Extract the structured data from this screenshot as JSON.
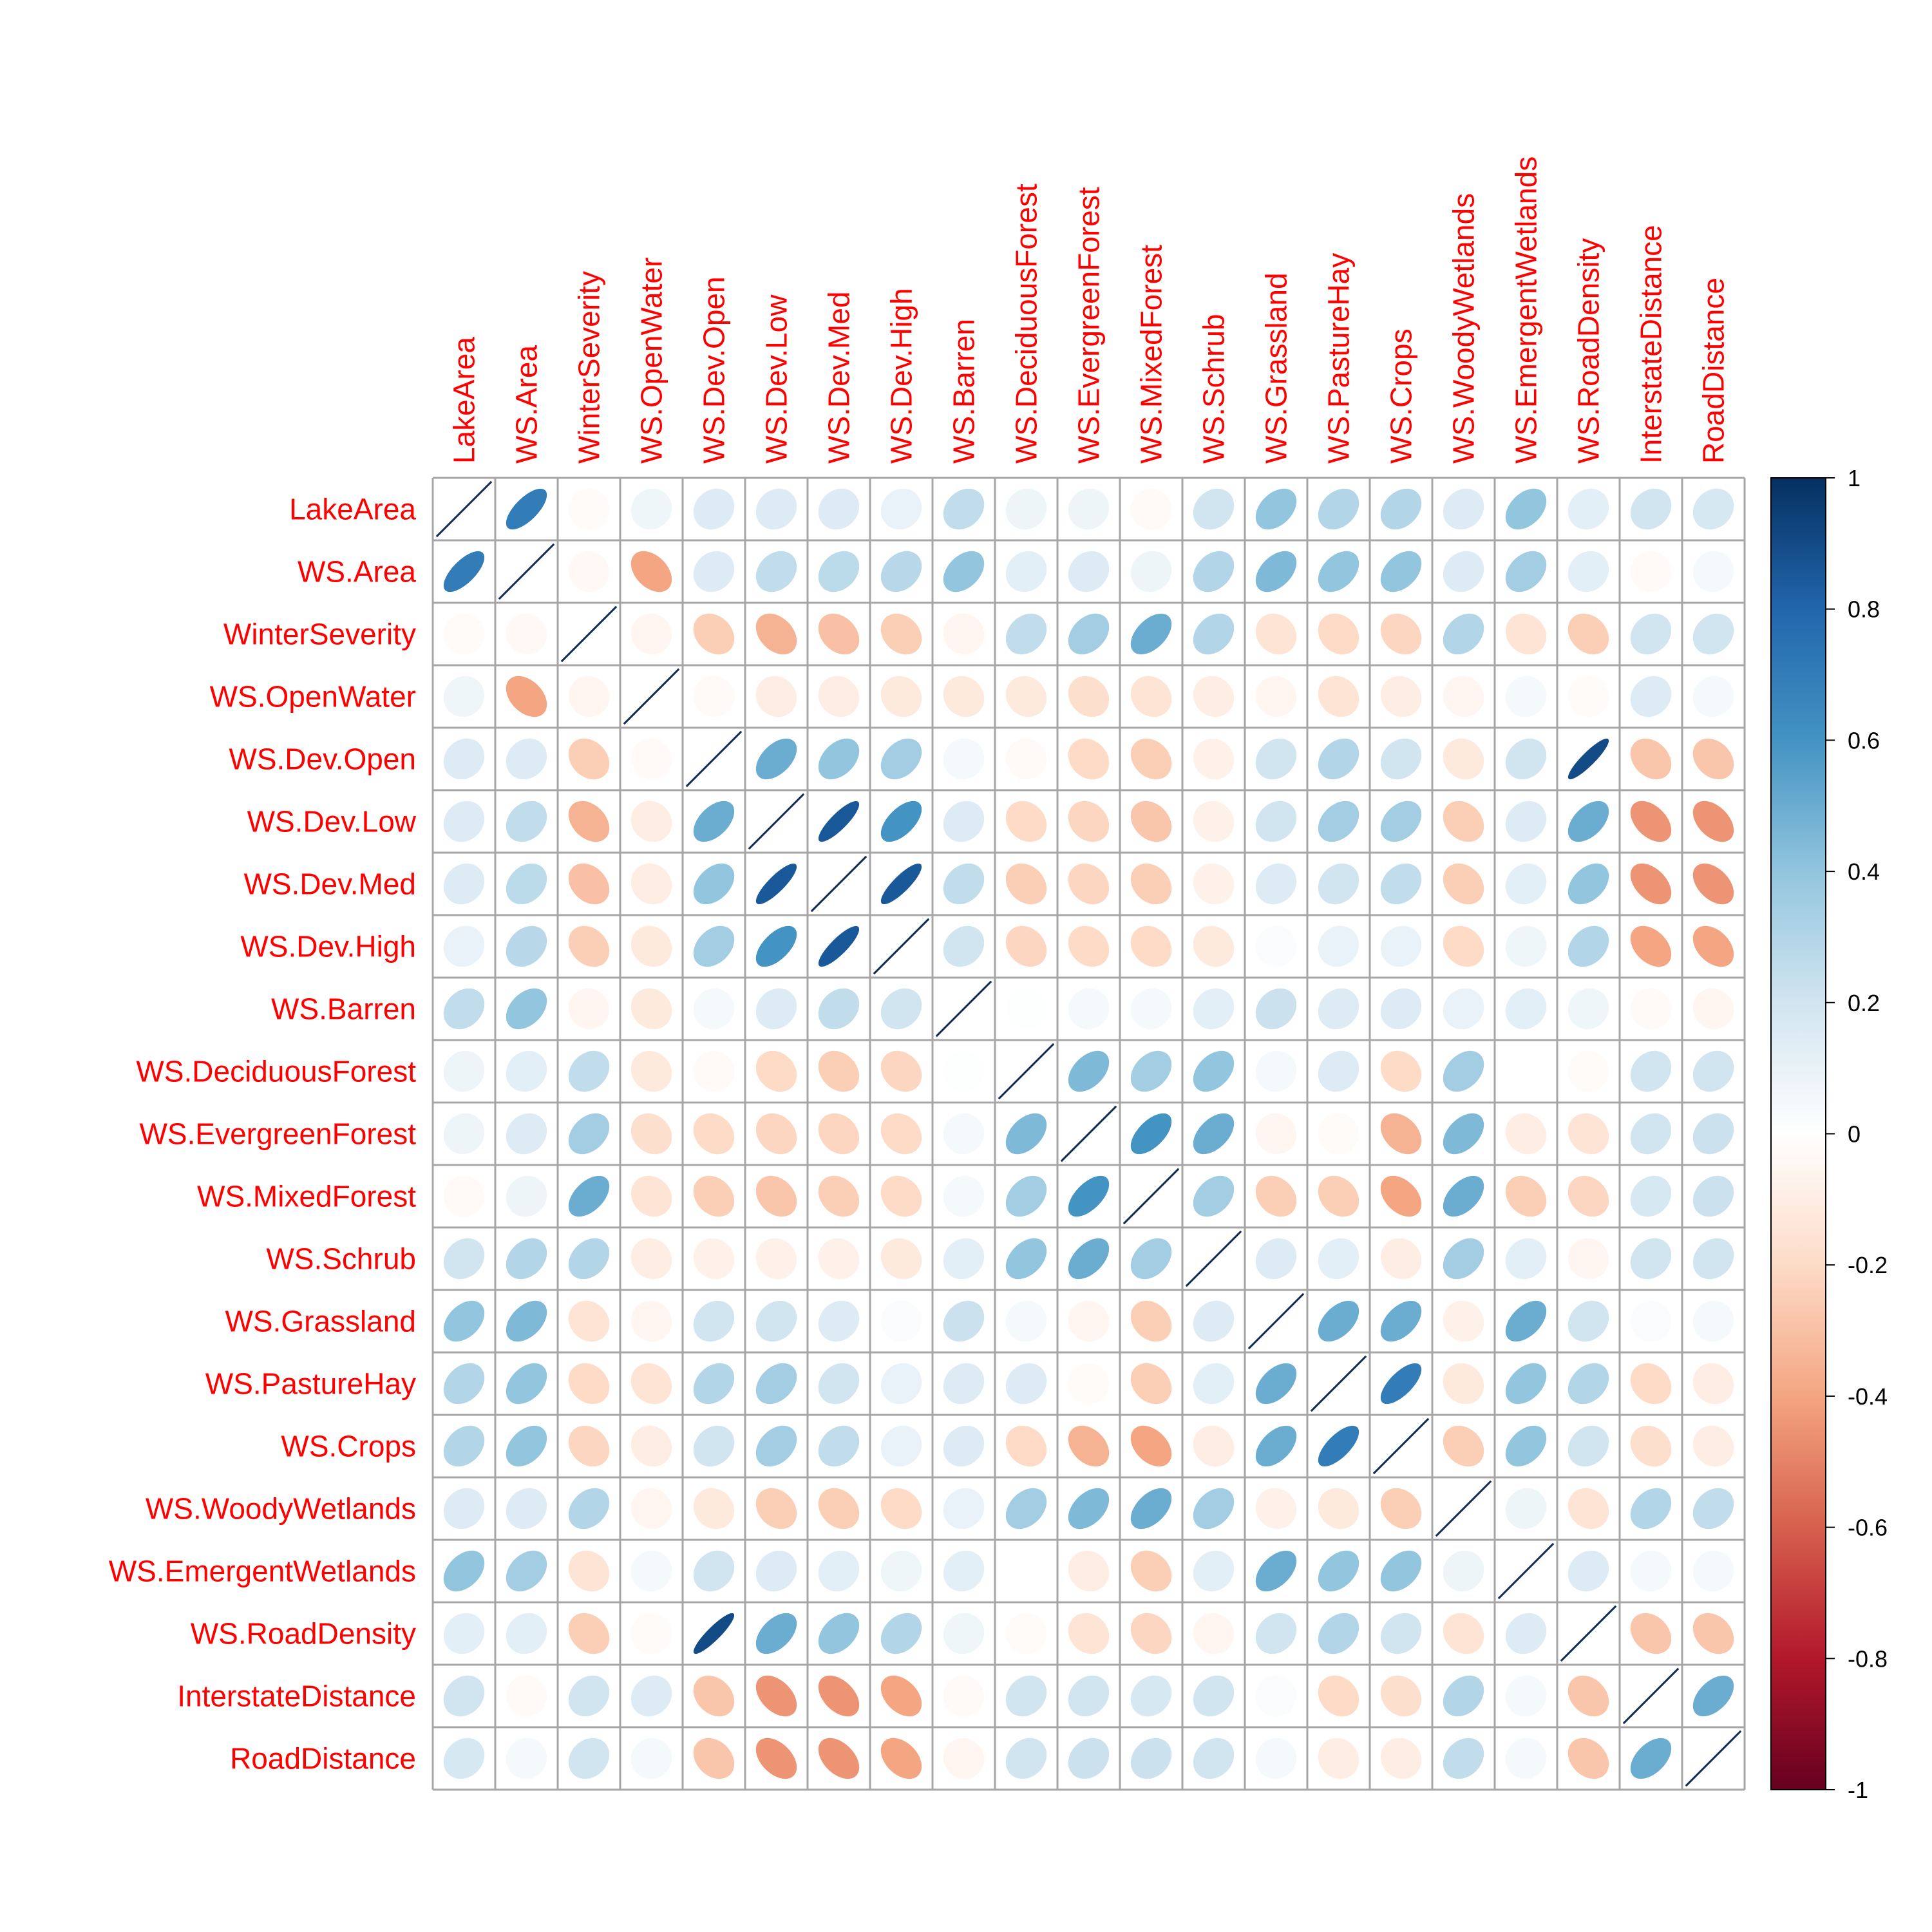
{
  "chart_data": {
    "type": "heatmap",
    "method": "ellipse",
    "variables": [
      "LakeArea",
      "WS.Area",
      "WinterSeverity",
      "WS.OpenWater",
      "WS.Dev.Open",
      "WS.Dev.Low",
      "WS.Dev.Med",
      "WS.Dev.High",
      "WS.Barren",
      "WS.DeciduousForest",
      "WS.EvergreenForest",
      "WS.MixedForest",
      "WS.Schrub",
      "WS.Grassland",
      "WS.PastureHay",
      "WS.Crops",
      "WS.WoodyWetlands",
      "WS.EmergentWetlands",
      "WS.RoadDensity",
      "InterstateDistance",
      "RoadDistance"
    ],
    "matrix": [
      [
        1.0,
        0.7,
        -0.02,
        0.07,
        0.15,
        0.15,
        0.15,
        0.1,
        0.25,
        0.08,
        0.08,
        -0.03,
        0.2,
        0.4,
        0.3,
        0.3,
        0.15,
        0.4,
        0.12,
        0.2,
        0.18
      ],
      [
        0.7,
        1.0,
        -0.04,
        -0.4,
        0.15,
        0.25,
        0.27,
        0.28,
        0.4,
        0.12,
        0.15,
        0.08,
        0.3,
        0.45,
        0.4,
        0.4,
        0.15,
        0.35,
        0.12,
        -0.03,
        0.05
      ],
      [
        -0.02,
        -0.04,
        1.0,
        -0.05,
        -0.25,
        -0.35,
        -0.3,
        -0.25,
        -0.05,
        0.25,
        0.35,
        0.5,
        0.3,
        -0.15,
        -0.2,
        -0.22,
        0.3,
        -0.15,
        -0.25,
        0.2,
        0.2
      ],
      [
        0.07,
        -0.4,
        -0.05,
        1.0,
        -0.03,
        -0.1,
        -0.1,
        -0.12,
        -0.12,
        -0.12,
        -0.18,
        -0.15,
        -0.1,
        -0.05,
        -0.15,
        -0.1,
        -0.05,
        0.05,
        -0.02,
        0.15,
        0.05
      ],
      [
        0.15,
        0.15,
        -0.25,
        -0.03,
        1.0,
        0.5,
        0.4,
        0.35,
        0.05,
        -0.03,
        -0.2,
        -0.25,
        -0.08,
        0.2,
        0.3,
        0.2,
        -0.12,
        0.2,
        0.9,
        -0.28,
        -0.28
      ],
      [
        0.15,
        0.25,
        -0.35,
        -0.1,
        0.5,
        1.0,
        0.85,
        0.6,
        0.15,
        -0.2,
        -0.22,
        -0.28,
        -0.08,
        0.2,
        0.35,
        0.35,
        -0.25,
        0.15,
        0.5,
        -0.45,
        -0.45
      ],
      [
        0.15,
        0.27,
        -0.3,
        -0.1,
        0.4,
        0.85,
        1.0,
        0.85,
        0.25,
        -0.25,
        -0.22,
        -0.25,
        -0.08,
        0.15,
        0.2,
        0.25,
        -0.25,
        0.12,
        0.4,
        -0.45,
        -0.45
      ],
      [
        0.1,
        0.28,
        -0.25,
        -0.12,
        0.35,
        0.6,
        0.85,
        1.0,
        0.2,
        -0.22,
        -0.2,
        -0.2,
        -0.12,
        0.02,
        0.1,
        0.1,
        -0.2,
        0.07,
        0.3,
        -0.4,
        -0.4
      ],
      [
        0.25,
        0.4,
        -0.05,
        -0.12,
        0.05,
        0.15,
        0.25,
        0.2,
        1.0,
        0.01,
        0.05,
        0.05,
        0.12,
        0.22,
        0.15,
        0.15,
        0.1,
        0.12,
        0.07,
        -0.03,
        -0.05
      ],
      [
        0.08,
        0.12,
        0.25,
        -0.12,
        -0.03,
        -0.2,
        -0.25,
        -0.22,
        0.01,
        1.0,
        0.45,
        0.35,
        0.4,
        0.05,
        0.15,
        -0.2,
        0.35,
        0.0,
        -0.02,
        0.2,
        0.2
      ],
      [
        0.08,
        0.15,
        0.35,
        -0.18,
        -0.2,
        -0.22,
        -0.22,
        -0.2,
        0.05,
        0.45,
        1.0,
        0.6,
        0.5,
        -0.05,
        -0.02,
        -0.35,
        0.45,
        -0.1,
        -0.15,
        0.2,
        0.22
      ],
      [
        -0.03,
        0.08,
        0.5,
        -0.15,
        -0.25,
        -0.28,
        -0.25,
        -0.2,
        0.05,
        0.35,
        0.6,
        1.0,
        0.35,
        -0.25,
        -0.25,
        -0.4,
        0.5,
        -0.25,
        -0.22,
        0.18,
        0.22
      ],
      [
        0.2,
        0.3,
        0.3,
        -0.1,
        -0.08,
        -0.08,
        -0.08,
        -0.12,
        0.12,
        0.4,
        0.5,
        0.35,
        1.0,
        0.15,
        0.12,
        -0.1,
        0.35,
        0.12,
        -0.05,
        0.2,
        0.2
      ],
      [
        0.4,
        0.45,
        -0.15,
        -0.05,
        0.2,
        0.2,
        0.15,
        0.02,
        0.22,
        0.05,
        -0.05,
        -0.25,
        0.15,
        1.0,
        0.5,
        0.5,
        -0.08,
        0.5,
        0.2,
        0.02,
        0.05
      ],
      [
        0.3,
        0.4,
        -0.2,
        -0.15,
        0.3,
        0.35,
        0.2,
        0.1,
        0.15,
        0.15,
        -0.02,
        -0.25,
        0.12,
        0.5,
        1.0,
        0.7,
        -0.12,
        0.4,
        0.3,
        -0.2,
        -0.1
      ],
      [
        0.3,
        0.4,
        -0.22,
        -0.1,
        0.2,
        0.35,
        0.25,
        0.1,
        0.15,
        -0.2,
        -0.35,
        -0.4,
        -0.1,
        0.5,
        0.7,
        1.0,
        -0.25,
        0.4,
        0.2,
        -0.18,
        -0.1
      ],
      [
        0.15,
        0.15,
        0.3,
        -0.05,
        -0.12,
        -0.25,
        -0.25,
        -0.2,
        0.1,
        0.35,
        0.45,
        0.5,
        0.35,
        -0.08,
        -0.12,
        -0.25,
        1.0,
        0.08,
        -0.15,
        0.3,
        0.25
      ],
      [
        0.4,
        0.35,
        -0.15,
        0.05,
        0.2,
        0.15,
        0.12,
        0.07,
        0.12,
        0.0,
        -0.1,
        -0.25,
        0.12,
        0.5,
        0.4,
        0.4,
        0.08,
        1.0,
        0.15,
        0.05,
        0.05
      ],
      [
        0.12,
        0.12,
        -0.25,
        -0.02,
        0.9,
        0.5,
        0.4,
        0.3,
        0.07,
        -0.02,
        -0.15,
        -0.22,
        -0.05,
        0.2,
        0.3,
        0.2,
        -0.15,
        0.15,
        1.0,
        -0.28,
        -0.28
      ],
      [
        0.2,
        -0.03,
        0.2,
        0.15,
        -0.28,
        -0.45,
        -0.45,
        -0.4,
        -0.03,
        0.2,
        0.2,
        0.18,
        0.2,
        0.02,
        -0.2,
        -0.18,
        0.3,
        0.05,
        -0.28,
        1.0,
        0.5
      ],
      [
        0.18,
        0.05,
        0.2,
        0.05,
        -0.28,
        -0.45,
        -0.45,
        -0.4,
        -0.05,
        0.2,
        0.22,
        0.22,
        0.2,
        0.05,
        -0.1,
        -0.1,
        0.25,
        0.05,
        -0.28,
        0.5,
        1.0
      ]
    ],
    "colorbar": {
      "range": [
        -1,
        1
      ],
      "ticks": [
        "1",
        "0.8",
        "0.6",
        "0.4",
        "0.2",
        "0",
        "-0.2",
        "-0.4",
        "-0.6",
        "-0.8",
        "-1"
      ],
      "colors": [
        "#67001F",
        "#B2182B",
        "#D6604D",
        "#F4A582",
        "#FDDBC7",
        "#FFFFFF",
        "#D1E5F0",
        "#92C5DE",
        "#4393C3",
        "#2166AC",
        "#053061"
      ]
    },
    "label_color": "#FF0000",
    "grid_color": "#A6A6A6",
    "diagonal_color": "#0D2B55"
  }
}
